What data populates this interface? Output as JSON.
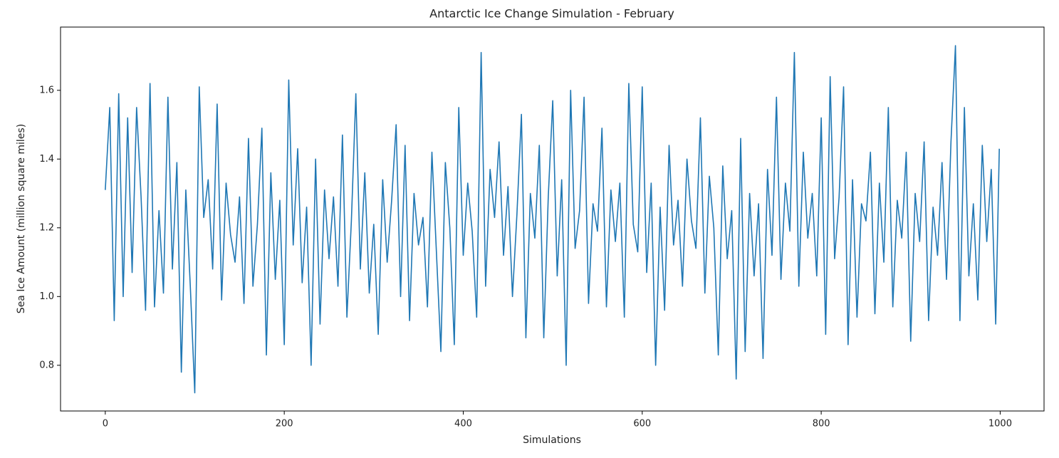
{
  "chart_data": {
    "type": "line",
    "title": "Antarctic Ice Change Simulation - February",
    "x_label": "Simulations",
    "y_label": "Sea Ice Amount (million square miles)",
    "x": [
      0,
      5,
      10,
      15,
      20,
      25,
      30,
      35,
      40,
      45,
      50,
      55,
      60,
      65,
      70,
      75,
      80,
      85,
      90,
      95,
      100,
      105,
      110,
      115,
      120,
      125,
      130,
      135,
      140,
      145,
      150,
      155,
      160,
      165,
      170,
      175,
      180,
      185,
      190,
      195,
      200,
      205,
      210,
      215,
      220,
      225,
      230,
      235,
      240,
      245,
      250,
      255,
      260,
      265,
      270,
      275,
      280,
      285,
      290,
      295,
      300,
      305,
      310,
      315,
      320,
      325,
      330,
      335,
      340,
      345,
      350,
      355,
      360,
      365,
      370,
      375,
      380,
      385,
      390,
      395,
      400,
      405,
      410,
      415,
      420,
      425,
      430,
      435,
      440,
      445,
      450,
      455,
      460,
      465,
      470,
      475,
      480,
      485,
      490,
      495,
      500,
      505,
      510,
      515,
      520,
      525,
      530,
      535,
      540,
      545,
      550,
      555,
      560,
      565,
      570,
      575,
      580,
      585,
      590,
      595,
      600,
      605,
      610,
      615,
      620,
      625,
      630,
      635,
      640,
      645,
      650,
      655,
      660,
      665,
      670,
      675,
      680,
      685,
      690,
      695,
      700,
      705,
      710,
      715,
      720,
      725,
      730,
      735,
      740,
      745,
      750,
      755,
      760,
      765,
      770,
      775,
      780,
      785,
      790,
      795,
      800,
      805,
      810,
      815,
      820,
      825,
      830,
      835,
      840,
      845,
      850,
      855,
      860,
      865,
      870,
      875,
      880,
      885,
      890,
      895,
      900,
      905,
      910,
      915,
      920,
      925,
      930,
      935,
      940,
      945,
      950,
      955,
      960,
      965,
      970,
      975,
      980,
      985,
      990,
      995,
      999
    ],
    "series": [
      {
        "color": "#1f77b4",
        "values": [
          1.31,
          1.55,
          0.93,
          1.59,
          1.0,
          1.52,
          1.07,
          1.55,
          1.29,
          0.96,
          1.62,
          0.97,
          1.25,
          1.01,
          1.58,
          1.08,
          1.39,
          0.78,
          1.31,
          1.03,
          0.72,
          1.61,
          1.23,
          1.34,
          1.08,
          1.56,
          0.99,
          1.33,
          1.18,
          1.1,
          1.29,
          0.98,
          1.46,
          1.03,
          1.21,
          1.49,
          0.83,
          1.36,
          1.05,
          1.28,
          0.86,
          1.63,
          1.15,
          1.43,
          1.04,
          1.26,
          0.8,
          1.4,
          0.92,
          1.31,
          1.11,
          1.29,
          1.03,
          1.47,
          0.94,
          1.22,
          1.59,
          1.08,
          1.36,
          1.01,
          1.21,
          0.89,
          1.34,
          1.1,
          1.28,
          1.5,
          1.0,
          1.44,
          0.93,
          1.3,
          1.15,
          1.23,
          0.97,
          1.42,
          1.13,
          0.84,
          1.39,
          1.2,
          0.86,
          1.55,
          1.12,
          1.33,
          1.19,
          0.94,
          1.71,
          1.03,
          1.37,
          1.23,
          1.45,
          1.12,
          1.32,
          1.0,
          1.24,
          1.53,
          0.88,
          1.3,
          1.17,
          1.44,
          0.88,
          1.29,
          1.57,
          1.06,
          1.34,
          0.8,
          1.6,
          1.14,
          1.25,
          1.58,
          0.98,
          1.27,
          1.19,
          1.49,
          0.97,
          1.31,
          1.16,
          1.33,
          0.94,
          1.62,
          1.21,
          1.13,
          1.61,
          1.07,
          1.33,
          0.8,
          1.26,
          0.96,
          1.44,
          1.15,
          1.28,
          1.03,
          1.4,
          1.22,
          1.14,
          1.52,
          1.01,
          1.35,
          1.2,
          0.83,
          1.38,
          1.11,
          1.25,
          0.76,
          1.46,
          0.84,
          1.3,
          1.06,
          1.27,
          0.82,
          1.37,
          1.12,
          1.58,
          1.05,
          1.33,
          1.19,
          1.71,
          1.03,
          1.42,
          1.17,
          1.3,
          1.06,
          1.52,
          0.89,
          1.64,
          1.11,
          1.29,
          1.61,
          0.86,
          1.34,
          0.94,
          1.27,
          1.22,
          1.42,
          0.95,
          1.33,
          1.1,
          1.55,
          0.97,
          1.28,
          1.17,
          1.42,
          0.87,
          1.3,
          1.16,
          1.45,
          0.93,
          1.26,
          1.12,
          1.39,
          1.05,
          1.45,
          1.73,
          0.93,
          1.55,
          1.06,
          1.27,
          0.99,
          1.44,
          1.16,
          1.37,
          0.92,
          1.43
        ]
      }
    ],
    "xlim": [
      -50,
      1049
    ],
    "ylim": [
      0.667,
      1.784
    ],
    "xticks": [
      0,
      200,
      400,
      600,
      800,
      1000
    ],
    "yticks": [
      0.8,
      {
        "value": 1.0,
        "label": "1.0"
      },
      1.2,
      1.4,
      1.6
    ]
  }
}
